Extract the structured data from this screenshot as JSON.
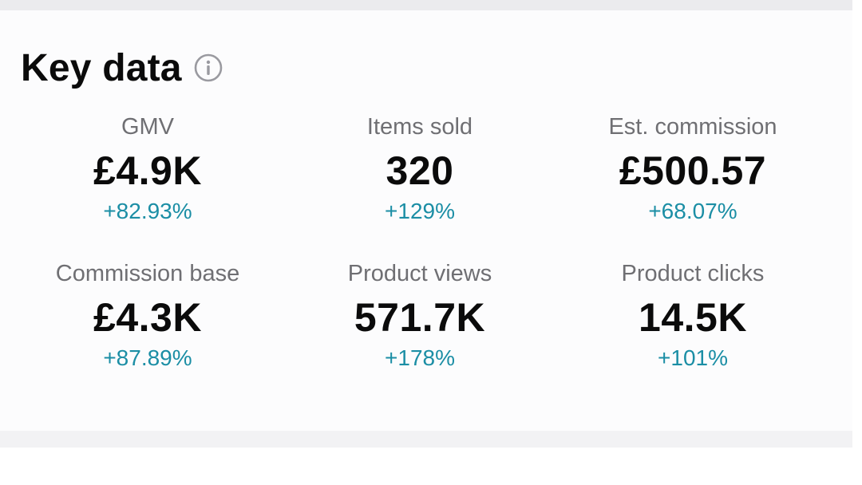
{
  "section": {
    "title": "Key data",
    "info_icon": "info-circle-icon"
  },
  "colors": {
    "positive_change": "#1b8ea5",
    "label": "#6f6f73",
    "value": "#0b0b0b"
  },
  "metrics": [
    {
      "label": "GMV",
      "value": "£4.9K",
      "change": "+82.93%"
    },
    {
      "label": "Items sold",
      "value": "320",
      "change": "+129%"
    },
    {
      "label": "Est. commission",
      "value": "£500.57",
      "change": "+68.07%"
    },
    {
      "label": "Commission base",
      "value": "£4.3K",
      "change": "+87.89%"
    },
    {
      "label": "Product views",
      "value": "571.7K",
      "change": "+178%"
    },
    {
      "label": "Product clicks",
      "value": "14.5K",
      "change": "+101%"
    }
  ]
}
